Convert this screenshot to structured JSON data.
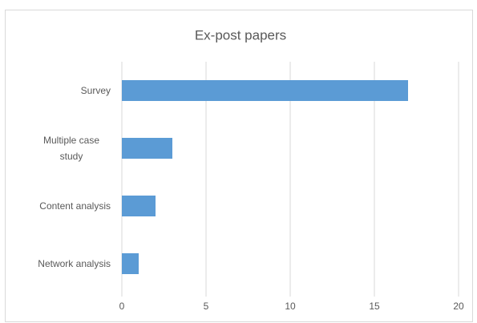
{
  "chart_data": {
    "type": "hbar",
    "title": "Ex-post papers",
    "categories": [
      "Survey",
      "Multiple case study",
      "Content analysis",
      "Network analysis"
    ],
    "values": [
      17,
      3,
      2,
      1
    ],
    "color": "#5b9bd5",
    "xlim": [
      0,
      20
    ],
    "xticks": [
      0,
      5,
      10,
      15,
      20
    ],
    "grid": true
  }
}
